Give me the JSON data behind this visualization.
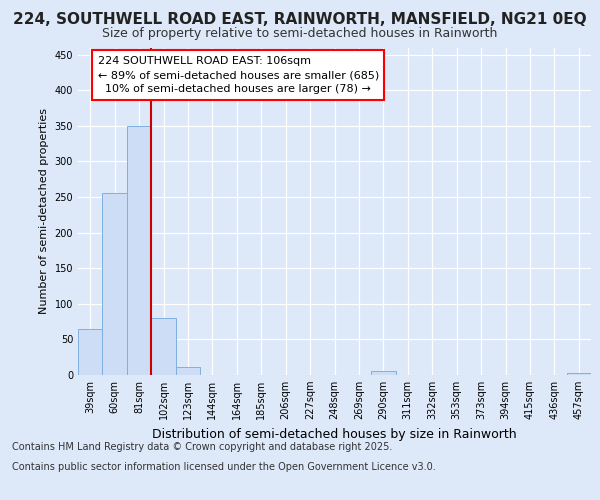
{
  "title_line1": "224, SOUTHWELL ROAD EAST, RAINWORTH, MANSFIELD, NG21 0EQ",
  "title_line2": "Size of property relative to semi-detached houses in Rainworth",
  "xlabel": "Distribution of semi-detached houses by size in Rainworth",
  "ylabel": "Number of semi-detached properties",
  "categories": [
    "39sqm",
    "60sqm",
    "81sqm",
    "102sqm",
    "123sqm",
    "144sqm",
    "164sqm",
    "185sqm",
    "206sqm",
    "227sqm",
    "248sqm",
    "269sqm",
    "290sqm",
    "311sqm",
    "332sqm",
    "353sqm",
    "373sqm",
    "394sqm",
    "415sqm",
    "436sqm",
    "457sqm"
  ],
  "values": [
    65,
    255,
    350,
    80,
    11,
    0,
    0,
    0,
    0,
    0,
    0,
    0,
    5,
    0,
    0,
    0,
    0,
    0,
    0,
    0,
    3
  ],
  "bar_color": "#ccddf5",
  "bar_edge_color": "#7fb0e0",
  "vline_x_index": 3,
  "annotation_text": "224 SOUTHWELL ROAD EAST: 106sqm\n← 89% of semi-detached houses are smaller (685)\n  10% of semi-detached houses are larger (78) →",
  "vline_color": "#cc0000",
  "ylim": [
    0,
    460
  ],
  "yticks": [
    0,
    50,
    100,
    150,
    200,
    250,
    300,
    350,
    400,
    450
  ],
  "fig_bg_color": "#dde8f8",
  "plot_bg_color": "#dde8f8",
  "grid_color": "#ffffff",
  "footer_line1": "Contains HM Land Registry data © Crown copyright and database right 2025.",
  "footer_line2": "Contains public sector information licensed under the Open Government Licence v3.0.",
  "title1_fontsize": 11,
  "title2_fontsize": 9,
  "xlabel_fontsize": 9,
  "ylabel_fontsize": 8,
  "tick_fontsize": 7,
  "footer_fontsize": 7,
  "annot_fontsize": 8
}
